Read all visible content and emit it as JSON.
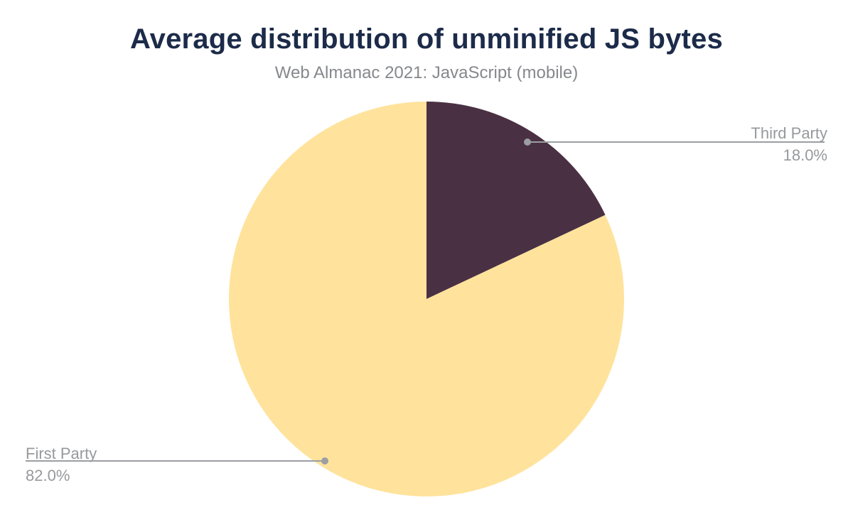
{
  "chart_data": {
    "type": "pie",
    "title": "Average distribution of unminified JS bytes",
    "subtitle": "Web Almanac 2021: JavaScript (mobile)",
    "start_angle_deg": 0,
    "direction": "clockwise",
    "legend_position": "outside-callouts",
    "slices": [
      {
        "label": "Third Party",
        "value": 18.0,
        "display": "18.0%",
        "color": "#4a3043"
      },
      {
        "label": "First Party",
        "value": 82.0,
        "display": "82.0%",
        "color": "#ffe39c"
      }
    ]
  },
  "colors": {
    "background": "#ffffff",
    "title": "#1c2b49",
    "subtitle": "#86888c",
    "callout_text": "#97999d",
    "leader_line": "#9b9ea3"
  }
}
